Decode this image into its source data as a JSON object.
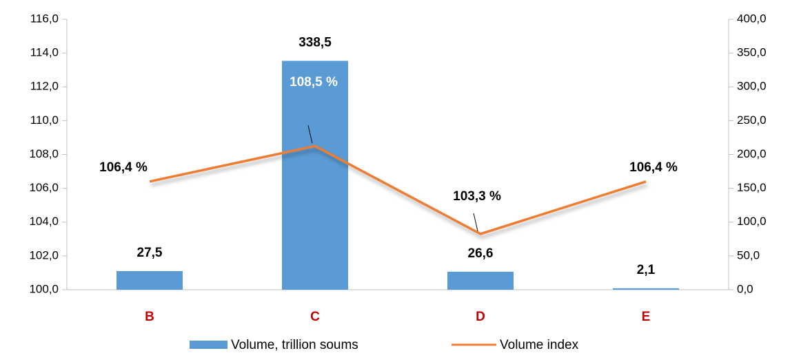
{
  "chart_data": {
    "type": "bar_line",
    "categories": [
      "B",
      "C",
      "D",
      "E"
    ],
    "series": [
      {
        "name": "Volume, trillion soums",
        "color": "#5b9bd5",
        "type": "bar",
        "axis": "y2",
        "values": [
          27.5,
          338.5,
          26.6,
          2.1
        ],
        "value_labels": [
          "27,5",
          "338,5",
          "26,6",
          "2,1"
        ]
      },
      {
        "name": "Volume index",
        "color": "#ed7d31",
        "type": "line",
        "axis": "y",
        "values": [
          106.4,
          108.5,
          103.3,
          106.4
        ],
        "value_labels": [
          "106,4 %",
          "108,5 %",
          "103,3 %",
          "106,4 %"
        ]
      }
    ],
    "ylim": [
      100,
      116
    ],
    "yticks": [
      {
        "value": 100,
        "label": "100,0"
      },
      {
        "value": 102,
        "label": "102,0"
      },
      {
        "value": 104,
        "label": "104,0"
      },
      {
        "value": 106,
        "label": "106,0"
      },
      {
        "value": 108,
        "label": "108,0"
      },
      {
        "value": 110,
        "label": "110,0"
      },
      {
        "value": 112,
        "label": "112,0"
      },
      {
        "value": 114,
        "label": "114,0"
      },
      {
        "value": 116,
        "label": "116,0"
      }
    ],
    "y2lim": [
      0,
      400
    ],
    "y2ticks": [
      {
        "value": 0,
        "label": "0,0"
      },
      {
        "value": 50,
        "label": "50,0"
      },
      {
        "value": 100,
        "label": "100,0"
      },
      {
        "value": 150,
        "label": "150,0"
      },
      {
        "value": 200,
        "label": "200,0"
      },
      {
        "value": 250,
        "label": "250,0"
      },
      {
        "value": 300,
        "label": "300,0"
      },
      {
        "value": 350,
        "label": "350,0"
      },
      {
        "value": 400,
        "label": "400,0"
      }
    ]
  }
}
